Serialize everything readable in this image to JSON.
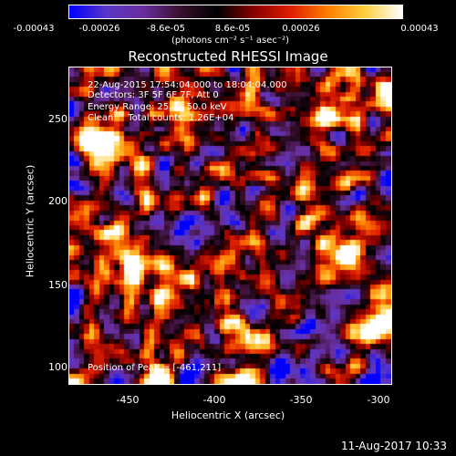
{
  "colorbar": {
    "ticks": [
      "-0.00043",
      "-0.00026",
      "-8.6e-05",
      "8.6e-05",
      "0.00026",
      "0.00043"
    ],
    "units": "(photons cm⁻² s⁻¹ asec⁻²)"
  },
  "title": "Reconstructed RHESSI Image",
  "info": {
    "time": "22-Aug-2015 17:54:04.000 to 18:04:04.000",
    "detectors": "Detectors: 3F 5F 6F 7F, Att 0",
    "energy": "Energy Range: 25.0 - 50.0 keV",
    "clean": "Clean     Total counts: 1.26E+04",
    "peak": "Position of Peak = [-461,211]"
  },
  "axes": {
    "xlabel": "Heliocentric X (arcsec)",
    "ylabel": "Heliocentric Y (arcsec)",
    "xticks": [
      "-450",
      "-400",
      "-350",
      "-300"
    ],
    "yticks": [
      "250",
      "200",
      "150",
      "100"
    ],
    "xrange": [
      -485,
      -297
    ],
    "yrange": [
      90,
      277
    ]
  },
  "timestamp": "11-Aug-2017 10:33",
  "colors": {
    "colormap": [
      "#0000ff",
      "#5a37c8",
      "#6a2e9e",
      "#3a1030",
      "#000000",
      "#8a0000",
      "#e02000",
      "#ff8000",
      "#ffd040",
      "#ffffff"
    ]
  }
}
